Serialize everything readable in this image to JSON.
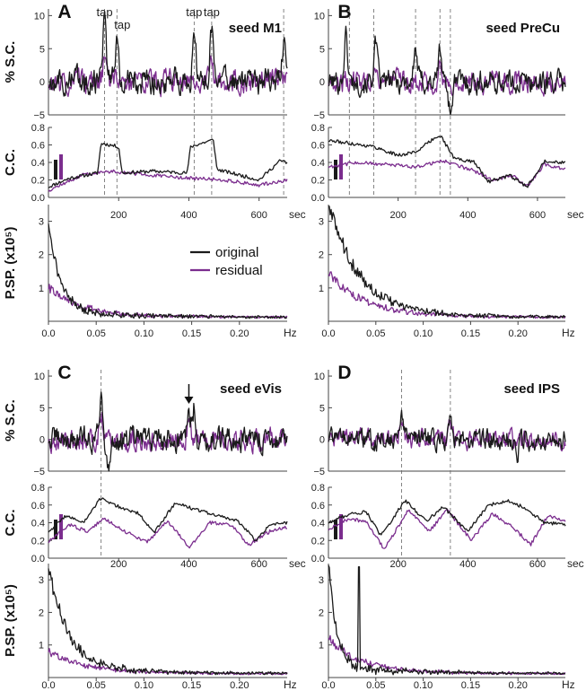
{
  "figure": {
    "series_colors": {
      "original": "#1a1a1a",
      "residual": "#7b2d8e"
    },
    "ylabels": {
      "sc": "% S.C.",
      "cc": "C.C.",
      "psp": "P.SP. (x10⁵)"
    },
    "sc_ticks": [
      "10",
      "5",
      "0",
      "−5"
    ],
    "cc_ticks": [
      "0.8",
      "0.6",
      "0.4",
      "0.2",
      "0.0"
    ],
    "psp_ticks": [
      "3",
      "2",
      "1"
    ],
    "time_ticks": [
      "200",
      "400",
      "600"
    ],
    "time_unit": "sec",
    "freq_ticks": [
      "0.0",
      "0.05",
      "0.10",
      "0.15",
      "0.20"
    ],
    "freq_unit": "Hz"
  },
  "legend": {
    "items": [
      "original",
      "residual"
    ]
  },
  "panels": [
    {
      "label": "A",
      "seed": "seed M1",
      "annotations": [
        "tap",
        "tap",
        "tap",
        "tap"
      ],
      "arrow": false
    },
    {
      "label": "B",
      "seed": "seed PreCu",
      "annotations": [],
      "arrow": false
    },
    {
      "label": "C",
      "seed": "seed eVis",
      "annotations": [],
      "arrow": true
    },
    {
      "label": "D",
      "seed": "seed IPS",
      "annotations": [],
      "arrow": false
    }
  ],
  "chart_data": [
    {
      "type": "line",
      "panel": "A",
      "title": "seed M1",
      "subplots": [
        {
          "name": "% S.C.",
          "xlim": [
            0,
            680
          ],
          "ylim": [
            -5,
            11
          ],
          "event_times": [
            160,
            195,
            415,
            465,
            670
          ],
          "series": [
            {
              "name": "original",
              "peaks": [
                [
                  160,
                  9.5
                ],
                [
                  195,
                  6.5
                ],
                [
                  415,
                  7.5
                ],
                [
                  465,
                  8.0
                ],
                [
                  670,
                  6.0
                ]
              ],
              "noise": 2.2
            },
            {
              "name": "residual",
              "peaks": [
                [
                  160,
                  3.5
                ],
                [
                  465,
                  3.0
                ]
              ],
              "noise": 2.0
            }
          ]
        },
        {
          "name": "C.C.",
          "xlim": [
            0,
            680
          ],
          "ylim": [
            0,
            0.8
          ],
          "series": [
            {
              "name": "original",
              "points": [
                [
                  0,
                  0.12
                ],
                [
                  60,
                  0.22
                ],
                [
                  140,
                  0.28
                ],
                [
                  150,
                  0.62
                ],
                [
                  200,
                  0.58
                ],
                [
                  210,
                  0.28
                ],
                [
                  300,
                  0.3
                ],
                [
                  395,
                  0.28
                ],
                [
                  405,
                  0.58
                ],
                [
                  470,
                  0.66
                ],
                [
                  480,
                  0.32
                ],
                [
                  600,
                  0.2
                ],
                [
                  660,
                  0.42
                ],
                [
                  680,
                  0.4
                ]
              ]
            },
            {
              "name": "residual",
              "points": [
                [
                  0,
                  0.08
                ],
                [
                  100,
                  0.26
                ],
                [
                  180,
                  0.3
                ],
                [
                  300,
                  0.25
                ],
                [
                  400,
                  0.22
                ],
                [
                  500,
                  0.2
                ],
                [
                  600,
                  0.14
                ],
                [
                  680,
                  0.2
                ]
              ]
            }
          ]
        },
        {
          "name": "P.SP.",
          "xlim": [
            0,
            0.25
          ],
          "ylim": [
            0,
            3.5
          ],
          "series": [
            {
              "name": "original",
              "peak": 2.75,
              "decay": 0.012,
              "noise": 0.35
            },
            {
              "name": "residual",
              "peak": 0.8,
              "decay": 0.03,
              "noise": 0.25
            }
          ]
        }
      ]
    },
    {
      "type": "line",
      "panel": "B",
      "title": "seed PreCu",
      "subplots": [
        {
          "name": "% S.C.",
          "xlim": [
            0,
            680
          ],
          "ylim": [
            -5,
            11
          ],
          "event_times": [
            60,
            130,
            250,
            320,
            350
          ],
          "series": [
            {
              "name": "original",
              "peaks": [
                [
                  50,
                  7.0
                ],
                [
                  135,
                  5.5
                ],
                [
                  250,
                  5.0
                ],
                [
                  320,
                  5.0
                ],
                [
                  350,
                  -4.5
                ]
              ],
              "noise": 2.0
            },
            {
              "name": "residual",
              "peaks": [
                [
                  135,
                  3.0
                ],
                [
                  320,
                  2.5
                ]
              ],
              "noise": 1.8
            }
          ]
        },
        {
          "name": "C.C.",
          "xlim": [
            0,
            680
          ],
          "ylim": [
            0,
            0.8
          ],
          "series": [
            {
              "name": "original",
              "points": [
                [
                  0,
                  0.65
                ],
                [
                  60,
                  0.62
                ],
                [
                  130,
                  0.58
                ],
                [
                  200,
                  0.48
                ],
                [
                  250,
                  0.52
                ],
                [
                  320,
                  0.72
                ],
                [
                  360,
                  0.45
                ],
                [
                  420,
                  0.4
                ],
                [
                  460,
                  0.18
                ],
                [
                  520,
                  0.25
                ],
                [
                  570,
                  0.12
                ],
                [
                  620,
                  0.42
                ],
                [
                  680,
                  0.4
                ]
              ]
            },
            {
              "name": "residual",
              "points": [
                [
                  0,
                  0.35
                ],
                [
                  80,
                  0.4
                ],
                [
                  150,
                  0.38
                ],
                [
                  250,
                  0.35
                ],
                [
                  330,
                  0.42
                ],
                [
                  420,
                  0.3
                ],
                [
                  470,
                  0.2
                ],
                [
                  530,
                  0.25
                ],
                [
                  570,
                  0.12
                ],
                [
                  620,
                  0.38
                ],
                [
                  680,
                  0.32
                ]
              ]
            }
          ]
        },
        {
          "name": "P.SP.",
          "xlim": [
            0,
            0.25
          ],
          "ylim": [
            0,
            3.5
          ],
          "series": [
            {
              "name": "original",
              "peak": 3.3,
              "decay": 0.03,
              "noise": 0.5
            },
            {
              "name": "residual",
              "peak": 1.2,
              "decay": 0.035,
              "noise": 0.3
            }
          ]
        }
      ]
    },
    {
      "type": "line",
      "panel": "C",
      "title": "seed eVis",
      "subplots": [
        {
          "name": "% S.C.",
          "xlim": [
            0,
            680
          ],
          "ylim": [
            -5,
            11
          ],
          "event_times": [
            150
          ],
          "series": [
            {
              "name": "original",
              "peaks": [
                [
                  150,
                  7.0
                ],
                [
                  170,
                  -5.0
                ],
                [
                  400,
                  4.5
                ],
                [
                  415,
                  5.0
                ]
              ],
              "noise": 2.2
            },
            {
              "name": "residual",
              "peaks": [
                [
                  150,
                  4.0
                ],
                [
                  400,
                  3.5
                ]
              ],
              "noise": 2.0
            }
          ]
        },
        {
          "name": "C.C.",
          "xlim": [
            0,
            680
          ],
          "ylim": [
            0,
            0.8
          ],
          "series": [
            {
              "name": "original",
              "points": [
                [
                  0,
                  0.3
                ],
                [
                  50,
                  0.48
                ],
                [
                  100,
                  0.4
                ],
                [
                  150,
                  0.68
                ],
                [
                  200,
                  0.58
                ],
                [
                  260,
                  0.5
                ],
                [
                  300,
                  0.28
                ],
                [
                  360,
                  0.62
                ],
                [
                  420,
                  0.55
                ],
                [
                  480,
                  0.48
                ],
                [
                  540,
                  0.42
                ],
                [
                  590,
                  0.2
                ],
                [
                  630,
                  0.38
                ],
                [
                  680,
                  0.4
                ]
              ]
            },
            {
              "name": "residual",
              "points": [
                [
                  0,
                  0.18
                ],
                [
                  60,
                  0.38
                ],
                [
                  110,
                  0.3
                ],
                [
                  160,
                  0.45
                ],
                [
                  210,
                  0.32
                ],
                [
                  280,
                  0.18
                ],
                [
                  340,
                  0.42
                ],
                [
                  400,
                  0.12
                ],
                [
                  460,
                  0.4
                ],
                [
                  520,
                  0.38
                ],
                [
                  570,
                  0.15
                ],
                [
                  630,
                  0.3
                ],
                [
                  680,
                  0.35
                ]
              ]
            }
          ]
        },
        {
          "name": "P.SP.",
          "xlim": [
            0,
            0.25
          ],
          "ylim": [
            0,
            3.5
          ],
          "series": [
            {
              "name": "original",
              "peak": 3.1,
              "decay": 0.02,
              "noise": 0.45
            },
            {
              "name": "residual",
              "peak": 0.6,
              "decay": 0.035,
              "noise": 0.2
            }
          ]
        }
      ]
    },
    {
      "type": "line",
      "panel": "D",
      "title": "seed IPS",
      "subplots": [
        {
          "name": "% S.C.",
          "xlim": [
            0,
            680
          ],
          "ylim": [
            -5,
            11
          ],
          "event_times": [
            210,
            350
          ],
          "series": [
            {
              "name": "original",
              "peaks": [
                [
                  210,
                  4.0
                ],
                [
                  350,
                  3.5
                ],
                [
                  540,
                  -3.5
                ]
              ],
              "noise": 1.8
            },
            {
              "name": "residual",
              "peaks": [
                [
                  210,
                  2.5
                ],
                [
                  350,
                  2.0
                ]
              ],
              "noise": 1.7
            }
          ]
        },
        {
          "name": "C.C.",
          "xlim": [
            0,
            680
          ],
          "ylim": [
            0,
            0.8
          ],
          "series": [
            {
              "name": "original",
              "points": [
                [
                  0,
                  0.4
                ],
                [
                  60,
                  0.5
                ],
                [
                  110,
                  0.52
                ],
                [
                  150,
                  0.25
                ],
                [
                  220,
                  0.65
                ],
                [
                  280,
                  0.42
                ],
                [
                  330,
                  0.58
                ],
                [
                  400,
                  0.3
                ],
                [
                  460,
                  0.6
                ],
                [
                  520,
                  0.65
                ],
                [
                  570,
                  0.55
                ],
                [
                  620,
                  0.4
                ],
                [
                  680,
                  0.38
                ]
              ]
            },
            {
              "name": "residual",
              "points": [
                [
                  0,
                  0.32
                ],
                [
                  60,
                  0.45
                ],
                [
                  110,
                  0.4
                ],
                [
                  160,
                  0.1
                ],
                [
                  230,
                  0.55
                ],
                [
                  290,
                  0.3
                ],
                [
                  340,
                  0.55
                ],
                [
                  410,
                  0.2
                ],
                [
                  470,
                  0.5
                ],
                [
                  530,
                  0.35
                ],
                [
                  580,
                  0.15
                ],
                [
                  630,
                  0.48
                ],
                [
                  680,
                  0.42
                ]
              ]
            }
          ]
        },
        {
          "name": "P.SP.",
          "xlim": [
            0,
            0.25
          ],
          "ylim": [
            0,
            3.5
          ],
          "series": [
            {
              "name": "original",
              "peak": 3.4,
              "decay": 0.008,
              "noise": 0.4,
              "spike": [
                0.032,
                3.4
              ]
            },
            {
              "name": "residual",
              "peak": 1.0,
              "decay": 0.03,
              "noise": 0.25
            }
          ]
        }
      ]
    }
  ]
}
